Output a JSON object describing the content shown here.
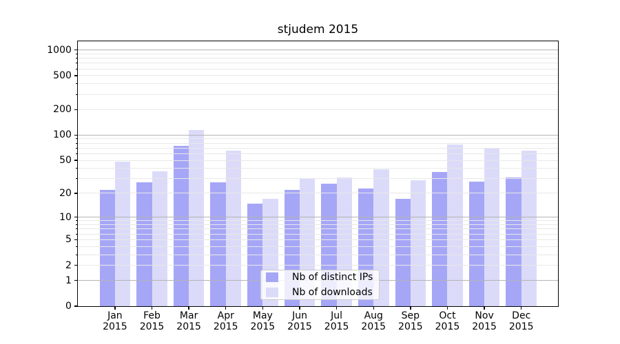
{
  "chart_data": {
    "type": "bar",
    "title": "stjudem 2015",
    "categories": [
      "Jan 2015",
      "Feb 2015",
      "Mar 2015",
      "Apr 2015",
      "May 2015",
      "Jun 2015",
      "Jul 2015",
      "Aug 2015",
      "Sep 2015",
      "Oct 2015",
      "Nov 2015",
      "Dec 2015"
    ],
    "months": [
      "Jan",
      "Feb",
      "Mar",
      "Apr",
      "May",
      "Jun",
      "Jul",
      "Aug",
      "Sep",
      "Oct",
      "Nov",
      "Dec"
    ],
    "year_label": "2015",
    "series": [
      {
        "name": "Nb of distinct IPs",
        "color": "#a6a6f7",
        "values": [
          22,
          27,
          74,
          27,
          15,
          22,
          26,
          23,
          17,
          36,
          28,
          31
        ]
      },
      {
        "name": "Nb of downloads",
        "color": "#dbdbf9",
        "values": [
          48,
          37,
          115,
          65,
          17,
          30,
          31,
          39,
          29,
          78,
          70,
          65
        ]
      }
    ],
    "xlabel": "",
    "ylabel": "",
    "y_scale": "log-like log(1+y), symlog appearance with 0 baseline",
    "ylim": [
      0,
      1265
    ],
    "y_tick_values": [
      0,
      1,
      2,
      5,
      10,
      20,
      50,
      100,
      200,
      500,
      1000
    ],
    "y_tick_labels": [
      "0",
      "1",
      "2",
      "5",
      "10",
      "20",
      "50",
      "100",
      "200",
      "500",
      "1000"
    ],
    "y_major_grid_values": [
      1,
      10,
      100,
      1000
    ],
    "y_minor_grid_values": [
      2,
      3,
      4,
      5,
      6,
      7,
      8,
      9,
      20,
      30,
      40,
      50,
      60,
      70,
      80,
      90,
      200,
      300,
      400,
      500,
      600,
      700,
      800,
      900
    ],
    "grid": true,
    "legend": {
      "position": "lower center, inside axes",
      "entries": [
        "Nb of distinct IPs",
        "Nb of downloads"
      ]
    }
  },
  "colors": {
    "background": "#ffffff",
    "bar_distinct_ips": "#a6a6f7",
    "bar_downloads": "#dbdbf9",
    "major_grid": "#b3b3b3",
    "minor_grid": "#e8e8e8",
    "spine": "#000000",
    "text": "#000000",
    "legend_border": "#cccccc",
    "legend_bg": "rgba(255,255,255,0.8)"
  }
}
